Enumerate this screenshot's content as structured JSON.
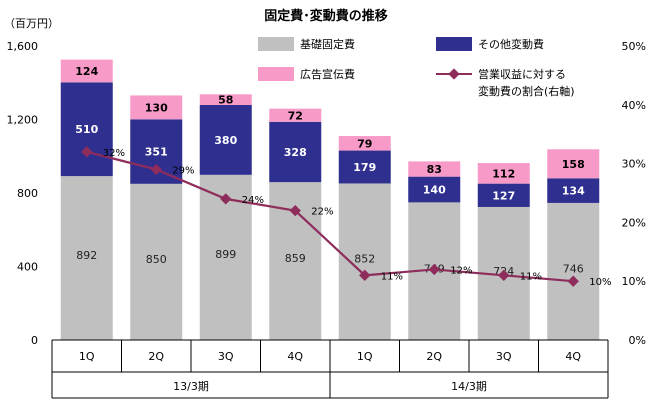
{
  "chart_data": {
    "type": "bar",
    "title": "固定費･変動費の推移",
    "ylabel": "（百万円）",
    "ylim": [
      0,
      1600
    ],
    "yticks": [
      "0",
      "400",
      "800",
      "1,200",
      "1,600"
    ],
    "y2lim": [
      0,
      50
    ],
    "y2ticks": [
      "0%",
      "10%",
      "20%",
      "30%",
      "40%",
      "50%"
    ],
    "categories": [
      "1Q",
      "2Q",
      "3Q",
      "4Q",
      "1Q",
      "2Q",
      "3Q",
      "4Q"
    ],
    "periods": [
      "13/3期",
      "14/3期"
    ],
    "series": [
      {
        "name": "基礎固定費",
        "color": "#c0c0c0",
        "values": [
          892,
          850,
          899,
          859,
          852,
          749,
          724,
          746
        ]
      },
      {
        "name": "その他変動費",
        "color": "#2e2f8f",
        "values": [
          510,
          351,
          380,
          328,
          179,
          140,
          127,
          134
        ]
      },
      {
        "name": "広告宣伝費",
        "color": "#f79ac8",
        "values": [
          124,
          130,
          58,
          72,
          79,
          83,
          112,
          158
        ]
      }
    ],
    "line": {
      "name": "営業収益に対する変動費の割合(右軸)",
      "color": "#8e2c5c",
      "values": [
        32,
        29,
        24,
        22,
        11,
        12,
        11,
        10
      ],
      "labels": [
        "32%",
        "29%",
        "24%",
        "22%",
        "11%",
        "12%",
        "11%",
        "10%"
      ]
    },
    "legend": {
      "fixed": "基礎固定費",
      "other": "その他変動費",
      "ad": "広告宣伝費",
      "ratio_line1": "営業収益に対する",
      "ratio_line2": "変動費の割合(右軸)"
    }
  }
}
